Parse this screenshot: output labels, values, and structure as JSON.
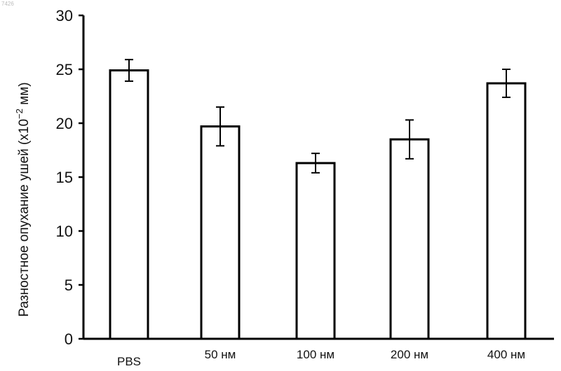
{
  "corner_id": "7426",
  "chart_data": {
    "type": "bar",
    "title": "",
    "xlabel": "",
    "ylabel": "Разностное опухание ушей (x10",
    "ylabel_exponent": "−2",
    "ylabel_suffix": " мм)",
    "categories": [
      "PBS",
      "50 нм",
      "100 нм",
      "200 нм",
      "400 нм"
    ],
    "values": [
      24.9,
      19.7,
      16.3,
      18.5,
      23.7
    ],
    "error": [
      1.0,
      1.8,
      0.9,
      1.8,
      1.3
    ],
    "yticks": [
      "0",
      "5",
      "10",
      "15",
      "20",
      "25",
      "30"
    ],
    "ylim": [
      0,
      30
    ],
    "grid": false,
    "legend": "none",
    "bar_fill": "#ffffff",
    "stroke_color": "#000000"
  }
}
